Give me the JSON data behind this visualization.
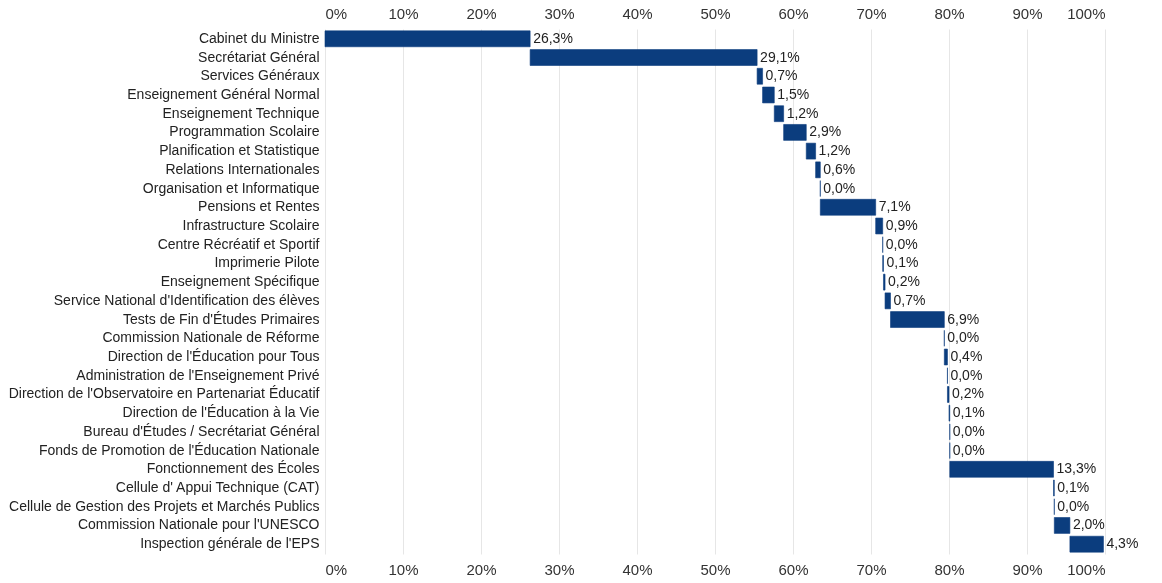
{
  "chart_data": {
    "type": "bar",
    "orientation": "horizontal",
    "categories": [
      "Cabinet du Ministre",
      "Secrétariat Général",
      "Services Généraux",
      "Enseignement Général Normal",
      "Enseignement Technique",
      "Programmation Scolaire",
      "Planification et Statistique",
      "Relations Internationales",
      "Organisation et Informatique",
      "Pensions et Rentes",
      "Infrastructure Scolaire",
      "Centre Récréatif et Sportif",
      "Imprimerie Pilote",
      "Enseignement Spécifique",
      "Service National d'Identification des élèves",
      "Tests de Fin d'Études Primaires",
      "Commission Nationale de Réforme",
      "Direction de l'Éducation pour Tous",
      "Administration de l'Enseignement Privé",
      "Direction de l'Observatoire en Partenariat Éducatif",
      "Direction de l'Éducation à la Vie",
      "Bureau d'Études / Secrétariat Général",
      "Fonds de Promotion de l'Éducation Nationale",
      "Fonctionnement des Écoles",
      "Cellule d' Appui Technique (CAT)",
      "Cellule de Gestion des Projets et Marchés Publics",
      "Commission Nationale pour l'UNESCO",
      "Inspection générale de l'EPS"
    ],
    "values": [
      26.3,
      29.1,
      0.7,
      1.5,
      1.2,
      2.9,
      1.2,
      0.6,
      0.0,
      7.1,
      0.9,
      0.0,
      0.1,
      0.2,
      0.7,
      6.9,
      0.0,
      0.4,
      0.0,
      0.2,
      0.1,
      0.0,
      0.0,
      13.3,
      0.1,
      0.0,
      2.0,
      4.3
    ],
    "base": [
      0,
      26.3,
      55.4,
      56.1,
      57.6,
      58.8,
      61.7,
      62.9,
      63.5,
      63.5,
      70.6,
      71.5,
      71.5,
      71.6,
      71.8,
      72.5,
      79.4,
      79.4,
      79.8,
      79.8,
      80.0,
      80.1,
      80.1,
      80.1,
      93.4,
      93.5,
      93.5,
      95.5
    ],
    "value_labels": [
      "26,3%",
      "29,1%",
      "0,7%",
      "1,5%",
      "1,2%",
      "2,9%",
      "1,2%",
      "0,6%",
      "0,0%",
      "7,1%",
      "0,9%",
      "0,0%",
      "0,1%",
      "0,2%",
      "0,7%",
      "6,9%",
      "0,0%",
      "0,4%",
      "0,0%",
      "0,2%",
      "0,1%",
      "0,0%",
      "0,0%",
      "13,3%",
      "0,1%",
      "0,0%",
      "2,0%",
      "4,3%"
    ],
    "color": "#0b3d7e",
    "xlim": [
      0,
      100
    ],
    "xticks": [
      {
        "value": 0,
        "label": "0%"
      },
      {
        "value": 10,
        "label": "10%"
      },
      {
        "value": 20,
        "label": "20%"
      },
      {
        "value": 30,
        "label": "30%"
      },
      {
        "value": 40,
        "label": "40%"
      },
      {
        "value": 50,
        "label": "50%"
      },
      {
        "value": 60,
        "label": "60%"
      },
      {
        "value": 70,
        "label": "70%"
      },
      {
        "value": 80,
        "label": "80%"
      },
      {
        "value": 90,
        "label": "90%"
      },
      {
        "value": 100,
        "label": "100%"
      }
    ],
    "x2lim": [
      0,
      100
    ],
    "x2ticks": [
      {
        "value": 0,
        "label": "0%"
      },
      {
        "value": 10,
        "label": "10%"
      },
      {
        "value": 20,
        "label": "20%"
      },
      {
        "value": 30,
        "label": "30%"
      },
      {
        "value": 40,
        "label": "40%"
      },
      {
        "value": 50,
        "label": "50%"
      },
      {
        "value": 60,
        "label": "60%"
      },
      {
        "value": 70,
        "label": "70%"
      },
      {
        "value": 80,
        "label": "80%"
      },
      {
        "value": 90,
        "label": "90%"
      },
      {
        "value": 100,
        "label": "100%"
      }
    ],
    "grid": "x"
  }
}
